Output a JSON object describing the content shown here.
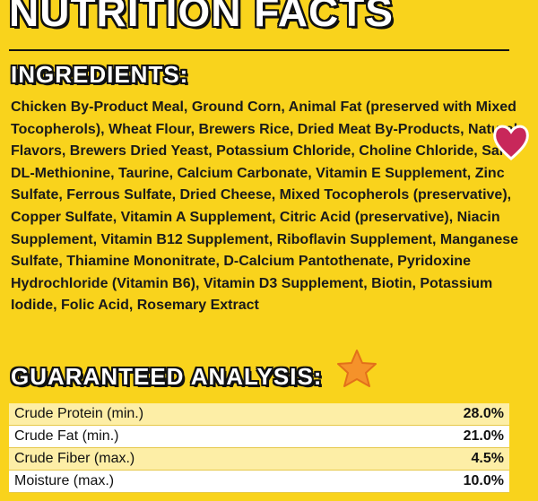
{
  "header": {
    "title": "NUTRITION FACTS"
  },
  "ingredients": {
    "heading": "INGREDIENTS:",
    "text": "Chicken By-Product Meal, Ground Corn, Animal Fat (preserved with Mixed Tocopherols), Wheat Flour, Brewers Rice, Dried Meat By-Products, Natural Flavors, Brewers Dried Yeast, Potassium Chloride, Choline Chloride, Salt, DL-Methionine, Taurine, Calcium Carbonate, Vitamin E Supplement, Zinc Sulfate, Ferrous Sulfate, Dried Cheese, Mixed Tocopherols (preservative), Copper Sulfate, Vitamin A Supplement, Citric Acid (preservative), Niacin Supplement, Vitamin B12 Supplement, Riboflavin Supplement, Manganese Sulfate, Thiamine Mononitrate, D-Calcium Pantothenate, Pyridoxine Hydrochloride (Vitamin B6), Vitamin D3 Supplement, Biotin, Potassium Iodide, Folic Acid, Rosemary Extract"
  },
  "analysis": {
    "heading": "GUARANTEED ANALYSIS:",
    "rows": [
      [
        "Crude Protein (min.)",
        "28.0%"
      ],
      [
        "Crude Fat (min.)",
        "21.0%"
      ],
      [
        "Crude Fiber (max.)",
        "4.5%"
      ],
      [
        "Moisture (max.)",
        "10.0%"
      ]
    ]
  }
}
